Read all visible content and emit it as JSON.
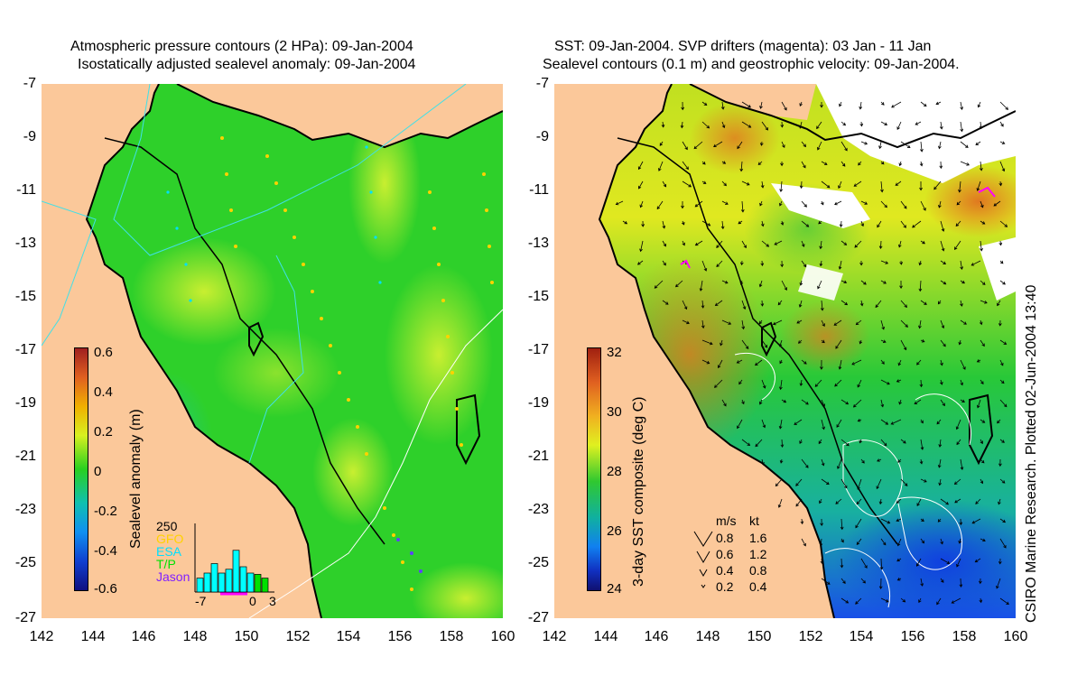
{
  "left_panel": {
    "title_line1": "Atmospheric pressure contours (2 HPa): 09-Jan-2004",
    "title_line2": "Isostatically adjusted sealevel anomaly: 09-Jan-2004",
    "colorbar": {
      "label": "Sealevel anomaly (m)",
      "ticks": [
        "0.6",
        "0.4",
        "0.2",
        "0",
        "-0.2",
        "-0.4",
        "-0.6"
      ]
    },
    "inset": {
      "ymax_label": "250",
      "legend": [
        "GFO",
        "ESA",
        "T/P",
        "Jason"
      ],
      "legend_colors": [
        "#ffd200",
        "#00e0ff",
        "#00e000",
        "#8020ff"
      ],
      "xticks": [
        "-7",
        "0",
        "3"
      ],
      "bars": [
        {
          "height": 0.22,
          "color": "#00ffff"
        },
        {
          "height": 0.3,
          "color": "#00ffff"
        },
        {
          "height": 0.45,
          "color": "#00ffff"
        },
        {
          "height": 0.3,
          "color": "#00ffff"
        },
        {
          "height": 0.36,
          "color": "#00ffff"
        },
        {
          "height": 0.66,
          "color": "#00ffff"
        },
        {
          "height": 0.4,
          "color": "#00ffff"
        },
        {
          "height": 0.3,
          "color": "#00ffff"
        },
        {
          "height": 0.28,
          "color": "#00e000"
        },
        {
          "height": 0.22,
          "color": "#00e000"
        }
      ]
    }
  },
  "right_panel": {
    "title_line1": "SST: 09-Jan-2004. SVP drifters (magenta): 03 Jan - 11 Jan",
    "title_line2": "Sealevel contours (0.1 m) and geostrophic velocity: 09-Jan-2004.",
    "colorbar": {
      "label": "3-day SST composite (deg C)",
      "ticks": [
        "32",
        "30",
        "28",
        "26",
        "24"
      ]
    },
    "velocity_key": {
      "header_ms": "m/s",
      "header_kt": "kt",
      "rows": [
        {
          "ms": "0.8",
          "kt": "1.6"
        },
        {
          "ms": "0.6",
          "kt": "1.2"
        },
        {
          "ms": "0.4",
          "kt": "0.8"
        },
        {
          "ms": "0.2",
          "kt": "0.4"
        }
      ]
    }
  },
  "axes": {
    "lat_ticks": [
      "-7",
      "-9",
      "-11",
      "-13",
      "-15",
      "-17",
      "-19",
      "-21",
      "-23",
      "-25",
      "-27"
    ],
    "lon_ticks": [
      "142",
      "144",
      "146",
      "148",
      "150",
      "152",
      "154",
      "156",
      "158",
      "160"
    ]
  },
  "credit": "CSIRO Marine Research. Plotted 02-Jun-2004 13:40",
  "colors": {
    "land": "#fbc89a",
    "coast": "#000000",
    "sla_mid": "#28d020",
    "sst_warm": "#e07820",
    "sst_cool": "#1c60ff",
    "pressure_contour": "#40e0e8"
  }
}
